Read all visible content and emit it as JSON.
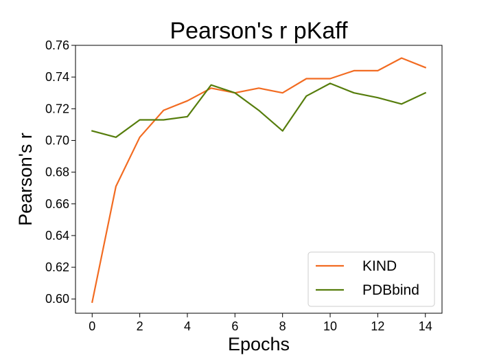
{
  "chart_data": {
    "type": "line",
    "title": "Pearson's r pKaff",
    "xlabel": "Epochs",
    "ylabel": "Pearson's r",
    "xlim": [
      -0.7,
      14.7
    ],
    "ylim": [
      0.591,
      0.76
    ],
    "x_ticks": [
      0,
      2,
      4,
      6,
      8,
      10,
      12,
      14
    ],
    "y_ticks": [
      0.6,
      0.62,
      0.64,
      0.66,
      0.68,
      0.7,
      0.72,
      0.74,
      0.76
    ],
    "grid": false,
    "legend_position": "lower-right",
    "x": [
      0,
      1,
      2,
      3,
      4,
      5,
      6,
      7,
      8,
      9,
      10,
      11,
      12,
      13,
      14
    ],
    "series": [
      {
        "name": "KIND",
        "color": "#f26b21",
        "values": [
          0.598,
          0.671,
          0.702,
          0.719,
          0.725,
          0.733,
          0.73,
          0.733,
          0.73,
          0.739,
          0.739,
          0.744,
          0.744,
          0.752,
          0.746
        ]
      },
      {
        "name": "PDBbind",
        "color": "#567d0c",
        "values": [
          0.706,
          0.702,
          0.713,
          0.713,
          0.715,
          0.735,
          0.73,
          0.719,
          0.706,
          0.728,
          0.736,
          0.73,
          0.727,
          0.723,
          0.73
        ]
      }
    ]
  }
}
